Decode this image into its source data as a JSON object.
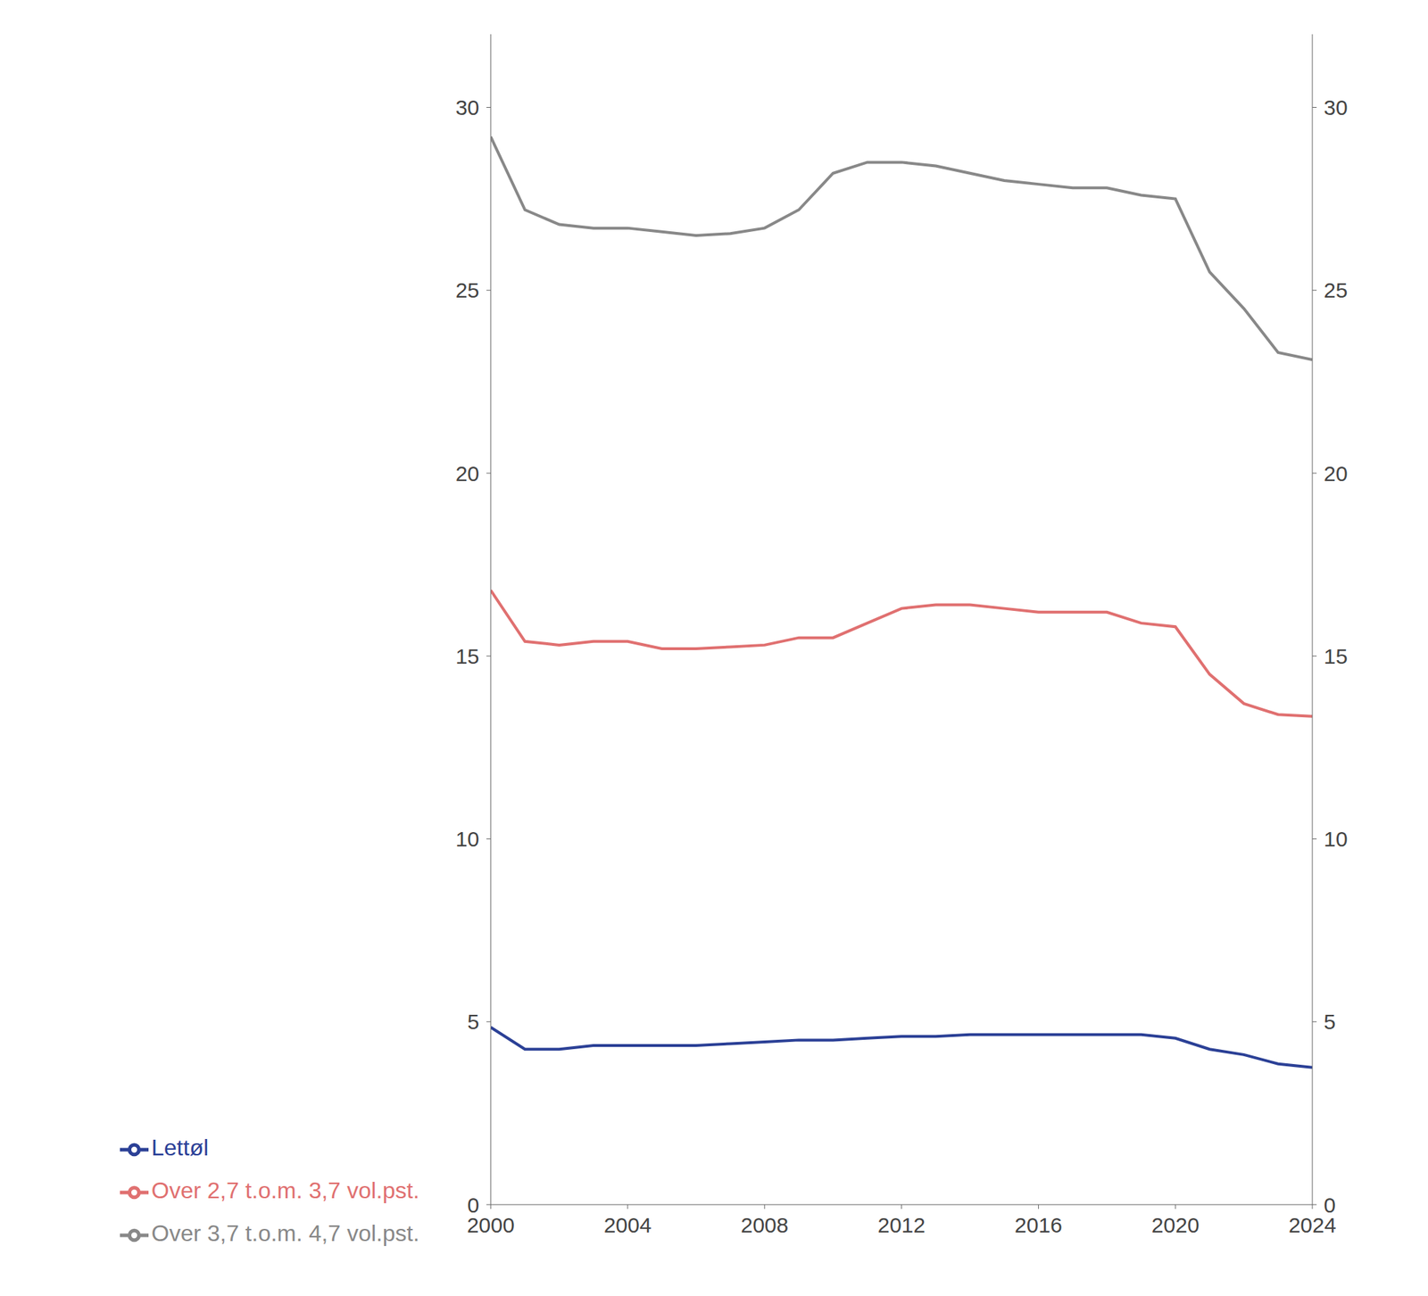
{
  "chart_data": {
    "type": "line",
    "x": [
      2000,
      2001,
      2002,
      2003,
      2004,
      2005,
      2006,
      2007,
      2008,
      2009,
      2010,
      2011,
      2012,
      2013,
      2014,
      2015,
      2016,
      2017,
      2018,
      2019,
      2020,
      2021,
      2022,
      2023,
      2024
    ],
    "series": [
      {
        "name": "Lettøl",
        "color": "#2b4096",
        "values": [
          4.85,
          4.25,
          4.25,
          4.35,
          4.35,
          4.35,
          4.35,
          4.4,
          4.45,
          4.5,
          4.5,
          4.55,
          4.6,
          4.6,
          4.65,
          4.65,
          4.65,
          4.65,
          4.65,
          4.65,
          4.55,
          4.25,
          4.1,
          3.85,
          3.75
        ]
      },
      {
        "name": "Over 2,7 t.o.m. 3,7 vol.pst.",
        "color": "#e07070",
        "values": [
          16.8,
          15.4,
          15.3,
          15.4,
          15.4,
          15.2,
          15.2,
          15.25,
          15.3,
          15.5,
          15.5,
          15.9,
          16.3,
          16.4,
          16.4,
          16.3,
          16.2,
          16.2,
          16.2,
          15.9,
          15.8,
          14.5,
          13.7,
          13.4,
          13.35
        ]
      },
      {
        "name": "Over 3,7 t.o.m. 4,7 vol.pst.",
        "color": "#888888",
        "values": [
          29.2,
          27.2,
          26.8,
          26.7,
          26.7,
          26.6,
          26.5,
          26.55,
          26.7,
          27.2,
          28.2,
          28.5,
          28.5,
          28.4,
          28.2,
          28.0,
          27.9,
          27.8,
          27.8,
          27.6,
          27.5,
          25.5,
          24.5,
          23.3,
          23.1
        ]
      }
    ],
    "xlim": [
      2000,
      2024
    ],
    "xticks": [
      2000,
      2004,
      2008,
      2012,
      2016,
      2020,
      2024
    ],
    "ylim": [
      0,
      32
    ],
    "yticks": [
      0,
      5,
      10,
      15,
      20,
      25,
      30
    ],
    "y2lim": [
      0,
      32
    ],
    "y2ticks": [
      0,
      5,
      10,
      15,
      20,
      25,
      30
    ],
    "grid": false,
    "legend": "bottom"
  }
}
